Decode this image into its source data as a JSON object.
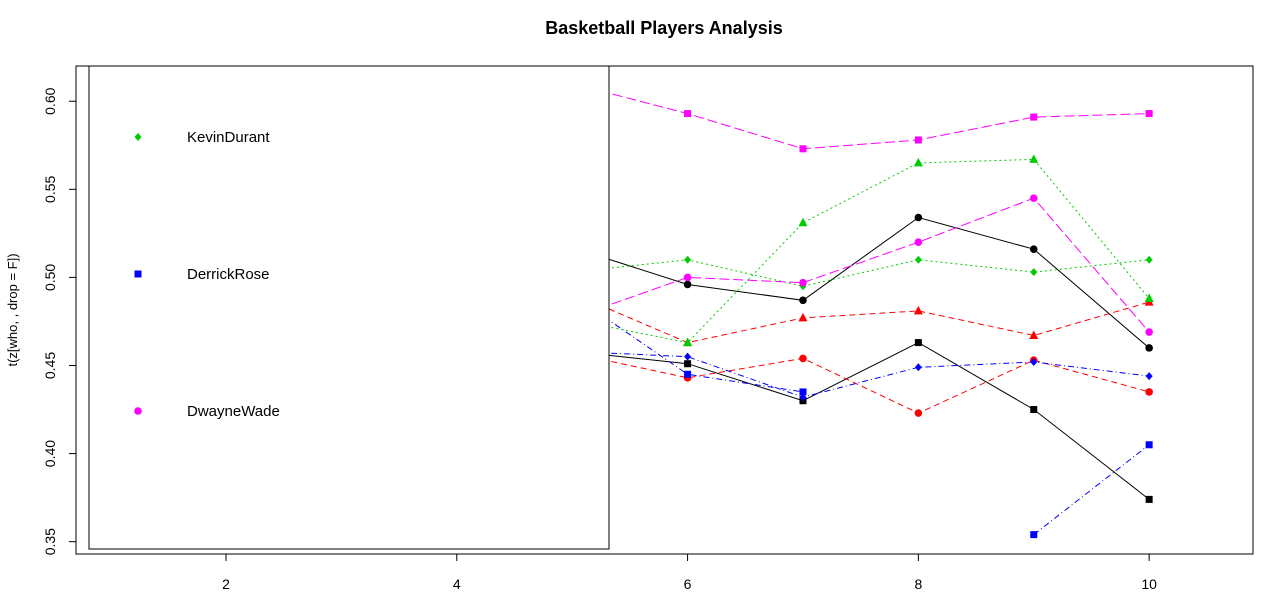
{
  "chart_data": {
    "type": "line",
    "title": "Basketball Players Analysis",
    "xlabel": "",
    "ylabel": "t(z[who, , drop = F])",
    "xlim": [
      0.7,
      10.9
    ],
    "ylim": [
      0.343,
      0.62
    ],
    "x_ticks": [
      2,
      4,
      6,
      8,
      10
    ],
    "y_ticks": [
      0.35,
      0.4,
      0.45,
      0.5,
      0.55,
      0.6
    ],
    "y_tick_labels": [
      "0.35",
      "0.40",
      "0.45",
      "0.50",
      "0.55",
      "0.60"
    ],
    "grid": false,
    "legend_position": "top-left",
    "legend": [
      {
        "label": "KevinDurant",
        "color": "#00cd00",
        "marker": "diamond"
      },
      {
        "label": "DerrickRose",
        "color": "#0000ff",
        "marker": "square"
      },
      {
        "label": "DwayneWade",
        "color": "#ff00ff",
        "marker": "circle"
      }
    ],
    "series": [
      {
        "color": "#000000",
        "dash": "",
        "marker": "circle",
        "x": [
          5,
          6,
          7,
          8,
          9,
          10
        ],
        "y": [
          0.517,
          0.496,
          0.487,
          0.534,
          0.516,
          0.46
        ]
      },
      {
        "color": "#000000",
        "dash": "",
        "marker": "square",
        "x": [
          5,
          6,
          7,
          8,
          9,
          10
        ],
        "y": [
          0.458,
          0.451,
          0.43,
          0.463,
          0.425,
          0.374
        ]
      },
      {
        "color": "#ff0000",
        "dash": "6,4",
        "marker": "triangle",
        "x": [
          5,
          6,
          7,
          8,
          9,
          10
        ],
        "y": [
          0.491,
          0.463,
          0.477,
          0.481,
          0.467,
          0.486
        ]
      },
      {
        "color": "#ff0000",
        "dash": "6,4",
        "marker": "circle",
        "x": [
          5,
          6,
          7,
          8,
          9,
          10
        ],
        "y": [
          0.457,
          0.443,
          0.454,
          0.423,
          0.453,
          0.435
        ]
      },
      {
        "color": "#00cd00",
        "dash": "2,3",
        "marker": "triangle",
        "x": [
          5,
          6,
          7,
          8,
          9,
          10
        ],
        "y": [
          0.476,
          0.463,
          0.531,
          0.565,
          0.567,
          0.488
        ]
      },
      {
        "color": "#00cd00",
        "dash": "2,3",
        "marker": "diamond",
        "x": [
          5,
          6,
          7,
          8,
          9,
          10
        ],
        "y": [
          0.503,
          0.51,
          0.495,
          0.51,
          0.503,
          0.51
        ]
      },
      {
        "color": "#0000ff",
        "dash": "6,3,1,3",
        "marker": "square",
        "x": [
          5,
          6,
          7,
          8,
          9,
          10
        ],
        "y": [
          0.49,
          0.445,
          0.435,
          null,
          0.354,
          0.405
        ]
      },
      {
        "color": "#0000ff",
        "dash": "6,3,1,3",
        "marker": "diamond",
        "x": [
          5,
          6,
          7,
          8,
          9,
          10
        ],
        "y": [
          0.458,
          0.455,
          0.432,
          0.449,
          0.452,
          0.444
        ]
      },
      {
        "color": "#ff00ff",
        "dash": "10,4",
        "marker": "square",
        "x": [
          5,
          6,
          7,
          8,
          9,
          10
        ],
        "y": [
          0.61,
          0.593,
          0.573,
          0.578,
          0.591,
          0.593
        ]
      },
      {
        "color": "#ff00ff",
        "dash": "10,4",
        "marker": "circle",
        "x": [
          5,
          6,
          7,
          8,
          9,
          10
        ],
        "y": [
          0.477,
          0.5,
          0.497,
          0.52,
          0.545,
          0.469
        ]
      }
    ]
  }
}
